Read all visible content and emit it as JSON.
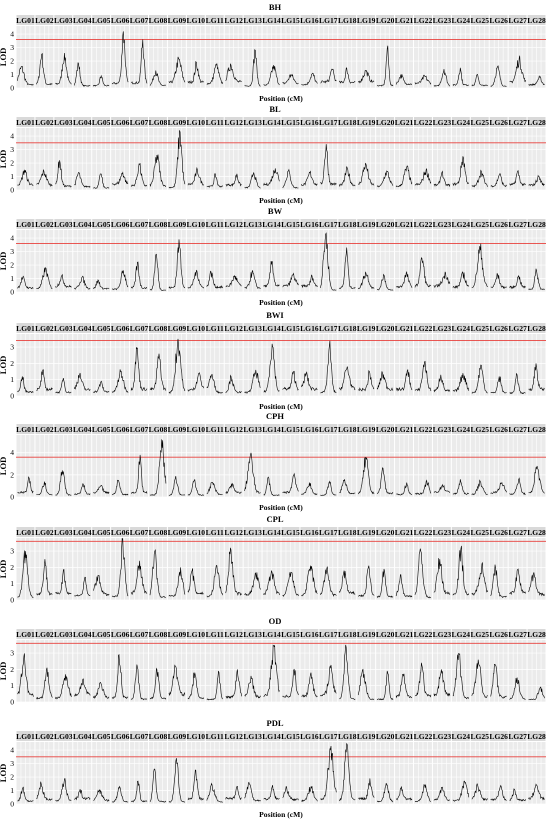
{
  "figure": {
    "lg_prefix": "LG"
  },
  "chart_data": [
    {
      "type": "line",
      "title": "BH",
      "xlabel": "Position (cM)",
      "ylabel": "LOD",
      "ylim": [
        0,
        4.6
      ],
      "yticks": [
        0,
        1,
        2,
        3,
        4
      ],
      "threshold": 3.6,
      "peaks": [
        {
          "lg": 1,
          "lod": 1.6
        },
        {
          "lg": 2,
          "lod": 2.5
        },
        {
          "lg": 3,
          "lod": 2.6
        },
        {
          "lg": 4,
          "lod": 1.8
        },
        {
          "lg": 5,
          "lod": 0.9
        },
        {
          "lg": 6,
          "lod": 4.2
        },
        {
          "lg": 7,
          "lod": 3.6
        },
        {
          "lg": 8,
          "lod": 1.3
        },
        {
          "lg": 9,
          "lod": 2.2
        },
        {
          "lg": 10,
          "lod": 1.9
        },
        {
          "lg": 11,
          "lod": 1.7
        },
        {
          "lg": 12,
          "lod": 1.8
        },
        {
          "lg": 13,
          "lod": 2.8
        },
        {
          "lg": 14,
          "lod": 1.7
        },
        {
          "lg": 15,
          "lod": 1.0
        },
        {
          "lg": 16,
          "lod": 1.1
        },
        {
          "lg": 17,
          "lod": 1.4
        },
        {
          "lg": 18,
          "lod": 1.5
        },
        {
          "lg": 19,
          "lod": 1.3
        },
        {
          "lg": 20,
          "lod": 2.9
        },
        {
          "lg": 21,
          "lod": 1.0
        },
        {
          "lg": 22,
          "lod": 0.9
        },
        {
          "lg": 23,
          "lod": 1.4
        },
        {
          "lg": 24,
          "lod": 1.5
        },
        {
          "lg": 25,
          "lod": 1.0
        },
        {
          "lg": 26,
          "lod": 1.6
        },
        {
          "lg": 27,
          "lod": 2.2
        },
        {
          "lg": 28,
          "lod": 0.8
        }
      ]
    },
    {
      "type": "line",
      "title": "BL",
      "xlabel": "Position (cM)",
      "ylabel": "LOD",
      "ylim": [
        0,
        4.6
      ],
      "yticks": [
        0,
        1,
        2,
        3,
        4
      ],
      "threshold": 3.5,
      "peaks": [
        {
          "lg": 1,
          "lod": 1.5
        },
        {
          "lg": 2,
          "lod": 1.4
        },
        {
          "lg": 3,
          "lod": 2.2
        },
        {
          "lg": 4,
          "lod": 1.3
        },
        {
          "lg": 5,
          "lod": 1.2
        },
        {
          "lg": 6,
          "lod": 1.3
        },
        {
          "lg": 7,
          "lod": 1.9
        },
        {
          "lg": 8,
          "lod": 2.6
        },
        {
          "lg": 9,
          "lod": 4.3
        },
        {
          "lg": 10,
          "lod": 1.5
        },
        {
          "lg": 11,
          "lod": 1.2
        },
        {
          "lg": 12,
          "lod": 1.2
        },
        {
          "lg": 13,
          "lod": 1.3
        },
        {
          "lg": 14,
          "lod": 1.6
        },
        {
          "lg": 15,
          "lod": 1.4
        },
        {
          "lg": 16,
          "lod": 1.3
        },
        {
          "lg": 17,
          "lod": 3.4
        },
        {
          "lg": 18,
          "lod": 1.6
        },
        {
          "lg": 19,
          "lod": 2.0
        },
        {
          "lg": 20,
          "lod": 1.4
        },
        {
          "lg": 21,
          "lod": 1.7
        },
        {
          "lg": 22,
          "lod": 1.5
        },
        {
          "lg": 23,
          "lod": 1.3
        },
        {
          "lg": 24,
          "lod": 2.5
        },
        {
          "lg": 25,
          "lod": 1.4
        },
        {
          "lg": 26,
          "lod": 1.2
        },
        {
          "lg": 27,
          "lod": 1.4
        },
        {
          "lg": 28,
          "lod": 1.0
        }
      ]
    },
    {
      "type": "line",
      "title": "BW",
      "xlabel": "Position (cM)",
      "ylabel": "LOD",
      "ylim": [
        0,
        4.6
      ],
      "yticks": [
        0,
        1,
        2,
        3,
        4
      ],
      "threshold": 3.6,
      "peaks": [
        {
          "lg": 1,
          "lod": 1.1
        },
        {
          "lg": 2,
          "lod": 1.8
        },
        {
          "lg": 3,
          "lod": 1.2
        },
        {
          "lg": 4,
          "lod": 1.1
        },
        {
          "lg": 5,
          "lod": 0.9
        },
        {
          "lg": 6,
          "lod": 1.6
        },
        {
          "lg": 7,
          "lod": 2.2
        },
        {
          "lg": 8,
          "lod": 2.8
        },
        {
          "lg": 9,
          "lod": 3.9
        },
        {
          "lg": 10,
          "lod": 1.6
        },
        {
          "lg": 11,
          "lod": 1.5
        },
        {
          "lg": 12,
          "lod": 1.2
        },
        {
          "lg": 13,
          "lod": 1.5
        },
        {
          "lg": 14,
          "lod": 2.3
        },
        {
          "lg": 15,
          "lod": 1.3
        },
        {
          "lg": 16,
          "lod": 1.2
        },
        {
          "lg": 17,
          "lod": 4.3
        },
        {
          "lg": 18,
          "lod": 3.3
        },
        {
          "lg": 19,
          "lod": 1.5
        },
        {
          "lg": 20,
          "lod": 1.3
        },
        {
          "lg": 21,
          "lod": 1.4
        },
        {
          "lg": 22,
          "lod": 2.5
        },
        {
          "lg": 23,
          "lod": 1.4
        },
        {
          "lg": 24,
          "lod": 1.4
        },
        {
          "lg": 25,
          "lod": 3.4
        },
        {
          "lg": 26,
          "lod": 1.3
        },
        {
          "lg": 27,
          "lod": 1.2
        },
        {
          "lg": 28,
          "lod": 1.6
        }
      ]
    },
    {
      "type": "line",
      "title": "BWI",
      "xlabel": "Position (cM)",
      "ylabel": "LOD",
      "ylim": [
        0,
        3.8
      ],
      "yticks": [
        0,
        1,
        2,
        3
      ],
      "threshold": 3.4,
      "peaks": [
        {
          "lg": 1,
          "lod": 1.2
        },
        {
          "lg": 2,
          "lod": 1.6
        },
        {
          "lg": 3,
          "lod": 1.1
        },
        {
          "lg": 4,
          "lod": 1.3
        },
        {
          "lg": 5,
          "lod": 0.9
        },
        {
          "lg": 6,
          "lod": 1.5
        },
        {
          "lg": 7,
          "lod": 2.9
        },
        {
          "lg": 8,
          "lod": 2.6
        },
        {
          "lg": 9,
          "lod": 3.5
        },
        {
          "lg": 10,
          "lod": 1.4
        },
        {
          "lg": 11,
          "lod": 1.3
        },
        {
          "lg": 12,
          "lod": 1.2
        },
        {
          "lg": 13,
          "lod": 1.6
        },
        {
          "lg": 14,
          "lod": 3.2
        },
        {
          "lg": 15,
          "lod": 1.5
        },
        {
          "lg": 16,
          "lod": 1.4
        },
        {
          "lg": 17,
          "lod": 3.1
        },
        {
          "lg": 18,
          "lod": 1.8
        },
        {
          "lg": 19,
          "lod": 1.5
        },
        {
          "lg": 20,
          "lod": 1.4
        },
        {
          "lg": 21,
          "lod": 1.6
        },
        {
          "lg": 22,
          "lod": 2.1
        },
        {
          "lg": 23,
          "lod": 1.3
        },
        {
          "lg": 24,
          "lod": 1.4
        },
        {
          "lg": 25,
          "lod": 1.9
        },
        {
          "lg": 26,
          "lod": 1.2
        },
        {
          "lg": 27,
          "lod": 1.3
        },
        {
          "lg": 28,
          "lod": 2.0
        }
      ]
    },
    {
      "type": "line",
      "title": "CPH",
      "xlabel": "Position (cM)",
      "ylabel": "LOD",
      "ylim": [
        0,
        5.6
      ],
      "yticks": [
        0,
        2,
        4
      ],
      "threshold": 3.6,
      "peaks": [
        {
          "lg": 1,
          "lod": 1.7
        },
        {
          "lg": 2,
          "lod": 1.4
        },
        {
          "lg": 3,
          "lod": 2.4
        },
        {
          "lg": 4,
          "lod": 1.2
        },
        {
          "lg": 5,
          "lod": 1.0
        },
        {
          "lg": 6,
          "lod": 1.5
        },
        {
          "lg": 7,
          "lod": 3.8
        },
        {
          "lg": 8,
          "lod": 5.2
        },
        {
          "lg": 9,
          "lod": 1.9
        },
        {
          "lg": 10,
          "lod": 1.5
        },
        {
          "lg": 11,
          "lod": 1.3
        },
        {
          "lg": 12,
          "lod": 1.2
        },
        {
          "lg": 13,
          "lod": 3.8
        },
        {
          "lg": 14,
          "lod": 1.8
        },
        {
          "lg": 15,
          "lod": 2.1
        },
        {
          "lg": 16,
          "lod": 1.3
        },
        {
          "lg": 17,
          "lod": 1.4
        },
        {
          "lg": 18,
          "lod": 1.6
        },
        {
          "lg": 19,
          "lod": 3.6
        },
        {
          "lg": 20,
          "lod": 2.6
        },
        {
          "lg": 21,
          "lod": 1.3
        },
        {
          "lg": 22,
          "lod": 1.5
        },
        {
          "lg": 23,
          "lod": 1.1
        },
        {
          "lg": 24,
          "lod": 1.6
        },
        {
          "lg": 25,
          "lod": 1.4
        },
        {
          "lg": 26,
          "lod": 1.3
        },
        {
          "lg": 27,
          "lod": 1.6
        },
        {
          "lg": 28,
          "lod": 2.8
        }
      ]
    },
    {
      "type": "line",
      "title": "CPL",
      "xlabel": "",
      "ylabel": "LOD",
      "ylim": [
        0,
        3.8
      ],
      "yticks": [
        0,
        1,
        2,
        3
      ],
      "threshold": 3.6,
      "peaks": [
        {
          "lg": 1,
          "lod": 3.0
        },
        {
          "lg": 2,
          "lod": 2.5
        },
        {
          "lg": 3,
          "lod": 1.9
        },
        {
          "lg": 4,
          "lod": 1.4
        },
        {
          "lg": 5,
          "lod": 1.5
        },
        {
          "lg": 6,
          "lod": 3.7
        },
        {
          "lg": 7,
          "lod": 2.4
        },
        {
          "lg": 8,
          "lod": 3.0
        },
        {
          "lg": 9,
          "lod": 2.0
        },
        {
          "lg": 10,
          "lod": 1.8
        },
        {
          "lg": 11,
          "lod": 2.1
        },
        {
          "lg": 12,
          "lod": 3.2
        },
        {
          "lg": 13,
          "lod": 1.6
        },
        {
          "lg": 14,
          "lod": 1.8
        },
        {
          "lg": 15,
          "lod": 1.7
        },
        {
          "lg": 16,
          "lod": 2.1
        },
        {
          "lg": 17,
          "lod": 1.9
        },
        {
          "lg": 18,
          "lod": 1.8
        },
        {
          "lg": 19,
          "lod": 2.1
        },
        {
          "lg": 20,
          "lod": 1.9
        },
        {
          "lg": 21,
          "lod": 1.5
        },
        {
          "lg": 22,
          "lod": 3.0
        },
        {
          "lg": 23,
          "lod": 2.5
        },
        {
          "lg": 24,
          "lod": 3.1
        },
        {
          "lg": 25,
          "lod": 2.2
        },
        {
          "lg": 26,
          "lod": 2.0
        },
        {
          "lg": 27,
          "lod": 1.9
        },
        {
          "lg": 28,
          "lod": 1.6
        }
      ]
    },
    {
      "type": "line",
      "title": "OD",
      "xlabel": "",
      "ylabel": "LOD",
      "ylim": [
        0,
        3.8
      ],
      "yticks": [
        0,
        1,
        2,
        3
      ],
      "threshold": 3.6,
      "peaks": [
        {
          "lg": 1,
          "lod": 2.8
        },
        {
          "lg": 2,
          "lod": 2.1
        },
        {
          "lg": 3,
          "lod": 1.7
        },
        {
          "lg": 4,
          "lod": 1.4
        },
        {
          "lg": 5,
          "lod": 1.2
        },
        {
          "lg": 6,
          "lod": 2.9
        },
        {
          "lg": 7,
          "lod": 2.3
        },
        {
          "lg": 8,
          "lod": 2.0
        },
        {
          "lg": 9,
          "lod": 2.2
        },
        {
          "lg": 10,
          "lod": 1.8
        },
        {
          "lg": 11,
          "lod": 1.9
        },
        {
          "lg": 12,
          "lod": 2.0
        },
        {
          "lg": 13,
          "lod": 1.6
        },
        {
          "lg": 14,
          "lod": 3.4
        },
        {
          "lg": 15,
          "lod": 2.0
        },
        {
          "lg": 16,
          "lod": 1.8
        },
        {
          "lg": 17,
          "lod": 2.1
        },
        {
          "lg": 18,
          "lod": 3.5
        },
        {
          "lg": 19,
          "lod": 2.0
        },
        {
          "lg": 20,
          "lod": 1.9
        },
        {
          "lg": 21,
          "lod": 1.7
        },
        {
          "lg": 22,
          "lod": 2.4
        },
        {
          "lg": 23,
          "lod": 2.0
        },
        {
          "lg": 24,
          "lod": 3.0
        },
        {
          "lg": 25,
          "lod": 2.6
        },
        {
          "lg": 26,
          "lod": 2.3
        },
        {
          "lg": 27,
          "lod": 1.5
        },
        {
          "lg": 28,
          "lod": 0.9
        }
      ]
    },
    {
      "type": "line",
      "title": "PDL",
      "xlabel": "Position (cM)",
      "ylabel": "LOD",
      "ylim": [
        0,
        4.6
      ],
      "yticks": [
        0,
        1,
        2,
        3,
        4
      ],
      "threshold": 3.5,
      "peaks": [
        {
          "lg": 1,
          "lod": 1.2
        },
        {
          "lg": 2,
          "lod": 1.5
        },
        {
          "lg": 3,
          "lod": 1.8
        },
        {
          "lg": 4,
          "lod": 1.1
        },
        {
          "lg": 5,
          "lod": 1.0
        },
        {
          "lg": 6,
          "lod": 1.3
        },
        {
          "lg": 7,
          "lod": 1.7
        },
        {
          "lg": 8,
          "lod": 2.6
        },
        {
          "lg": 9,
          "lod": 3.4
        },
        {
          "lg": 10,
          "lod": 2.5
        },
        {
          "lg": 11,
          "lod": 1.4
        },
        {
          "lg": 12,
          "lod": 1.3
        },
        {
          "lg": 13,
          "lod": 1.6
        },
        {
          "lg": 14,
          "lod": 1.4
        },
        {
          "lg": 15,
          "lod": 1.2
        },
        {
          "lg": 16,
          "lod": 1.3
        },
        {
          "lg": 17,
          "lod": 4.3
        },
        {
          "lg": 18,
          "lod": 4.5
        },
        {
          "lg": 19,
          "lod": 1.9
        },
        {
          "lg": 20,
          "lod": 1.4
        },
        {
          "lg": 21,
          "lod": 1.3
        },
        {
          "lg": 22,
          "lod": 1.4
        },
        {
          "lg": 23,
          "lod": 1.2
        },
        {
          "lg": 24,
          "lod": 1.7
        },
        {
          "lg": 25,
          "lod": 1.4
        },
        {
          "lg": 26,
          "lod": 1.3
        },
        {
          "lg": 27,
          "lod": 1.1
        },
        {
          "lg": 28,
          "lod": 1.4
        }
      ]
    }
  ]
}
